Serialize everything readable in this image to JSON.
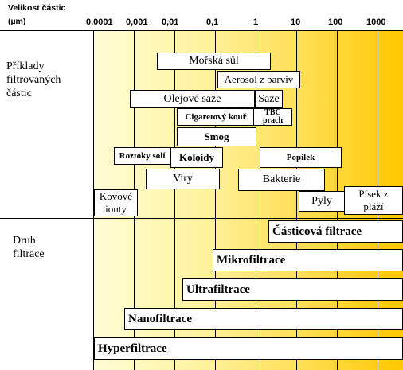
{
  "header": {
    "line1": "Velikost částic",
    "line2": "(µm)"
  },
  "ticks": [
    "0,0001",
    "0,001",
    "0,01",
    "0,1",
    "1",
    "10",
    "100",
    "1000"
  ],
  "left": {
    "particles_label": [
      "Příklady",
      "filtrovaných",
      "částic"
    ],
    "filtration_label": [
      "Druh",
      "filtrace"
    ]
  },
  "particles": {
    "morska_sul": "Mořská sůl",
    "aerosol": "Aerosol z barviv",
    "olejove_saze": "Olejové saze",
    "saze": "Saze",
    "cigaretovy_kour": "Cigaretový kouř",
    "tbc_prach_1": "TBC",
    "tbc_prach_2": "prach",
    "smog": "Smog",
    "roztoky_soli": "Roztoky solí",
    "koloidy": "Koloidy",
    "popilek": "Popílek",
    "viry": "Viry",
    "bakterie": "Bakterie",
    "kovove_ionty_1": "Kovové",
    "kovove_ionty_2": "ionty",
    "pyly": "Pyly",
    "pisek_1": "Písek z",
    "pisek_2": "pláží"
  },
  "filtration": {
    "casticova": "Částicová filtrace",
    "mikro": "Mikrofiltrace",
    "ultra": "Ultrafiltrace",
    "nano": "Nanofiltrace",
    "hyper": "Hyperfiltrace"
  }
}
